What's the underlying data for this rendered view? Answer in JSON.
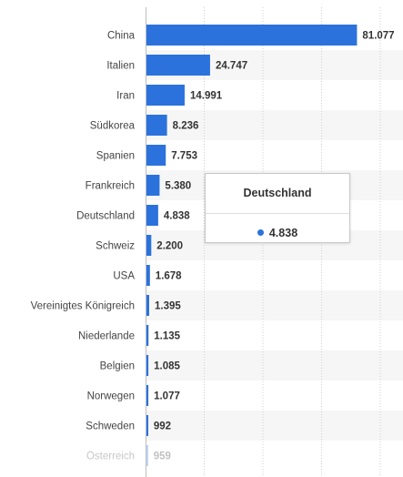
{
  "chart_data": {
    "type": "bar",
    "orientation": "horizontal",
    "categories": [
      "China",
      "Italien",
      "Iran",
      "Südkorea",
      "Spanien",
      "Frankreich",
      "Deutschland",
      "Schweiz",
      "USA",
      "Vereinigtes Königreich",
      "Niederlande",
      "Belgien",
      "Norwegen",
      "Schweden",
      "Österreich"
    ],
    "values": [
      81077,
      24747,
      14991,
      8236,
      7753,
      5380,
      4838,
      2200,
      1678,
      1395,
      1135,
      1085,
      1077,
      992,
      959
    ],
    "value_labels": [
      "81.077",
      "24.747",
      "14.991",
      "8.236",
      "7.753",
      "5.380",
      "4.838",
      "2.200",
      "1.678",
      "1.395",
      "1.135",
      "1.085",
      "1.077",
      "992",
      "959"
    ],
    "xlim": [
      0,
      90000
    ],
    "grid": true,
    "bar_color": "#2b72dd",
    "title": "",
    "xlabel": "",
    "ylabel": ""
  },
  "tooltip": {
    "title": "Deutschland",
    "value": "4.838",
    "dot_color": "#2b72dd"
  }
}
